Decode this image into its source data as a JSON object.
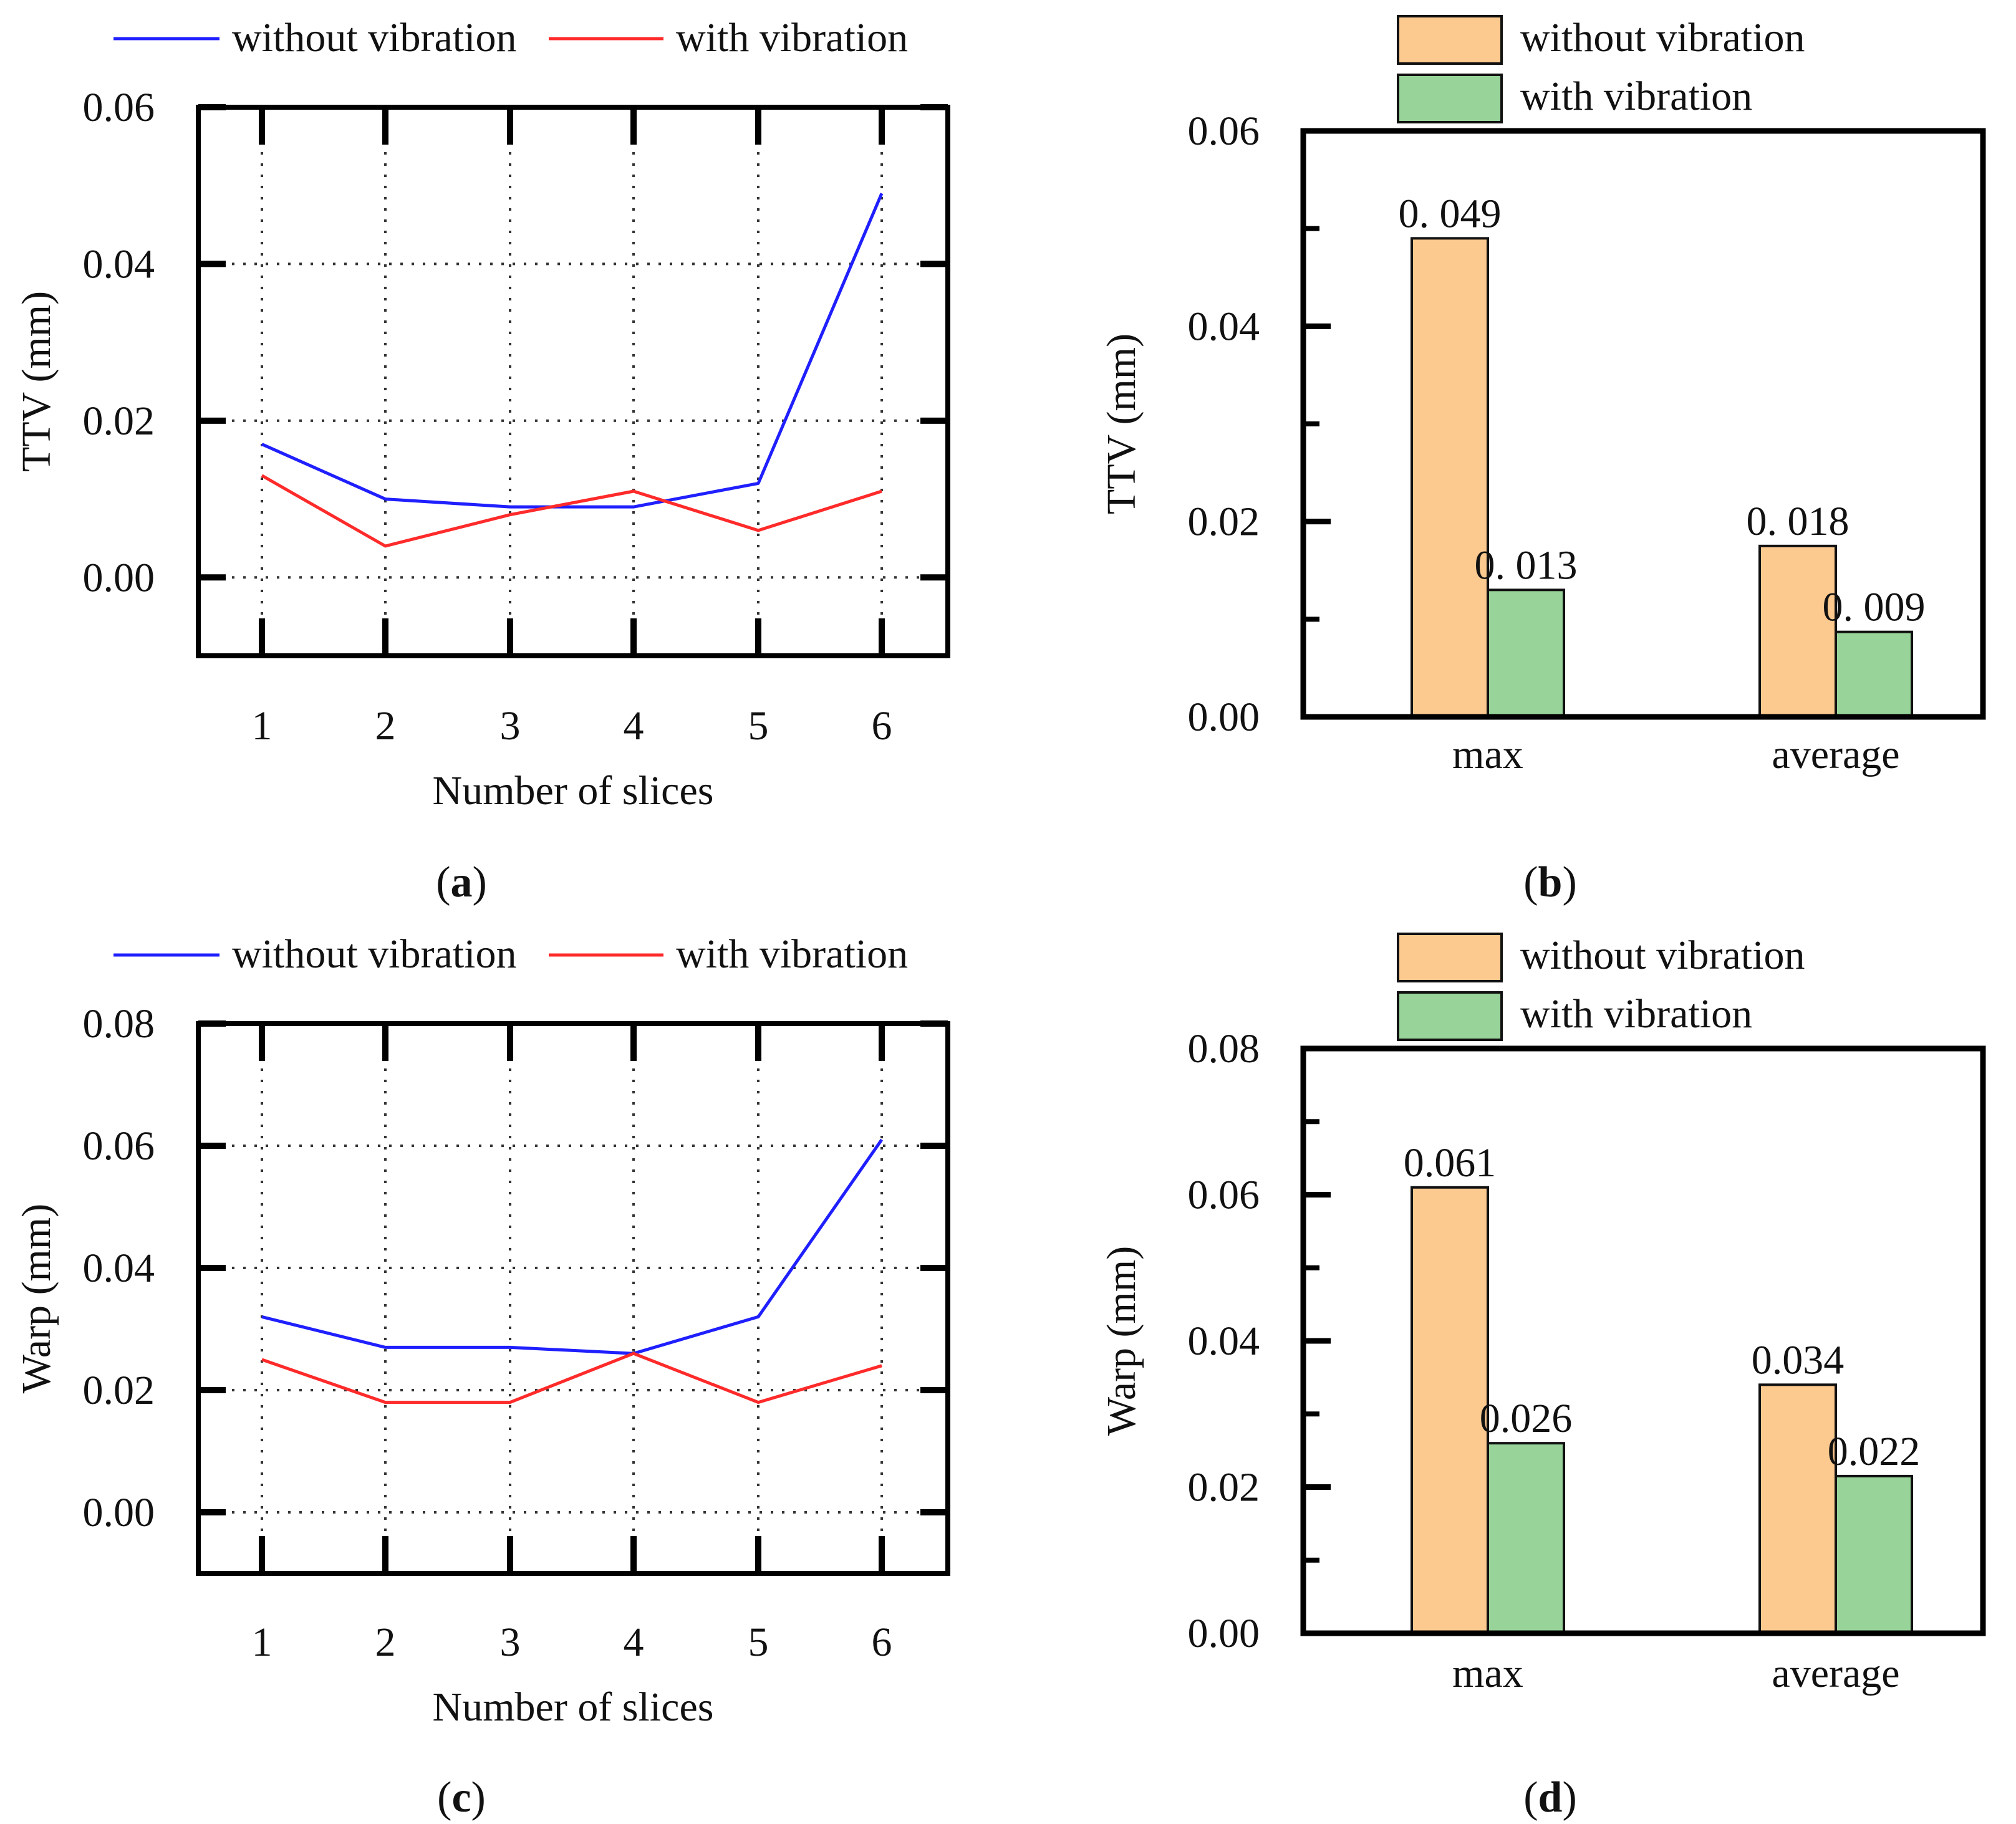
{
  "colors": {
    "blue_line": "#1f1fff",
    "red_line": "#ff2a2a",
    "orange_bar": "#fcc98f",
    "green_bar": "#98d49a",
    "axis": "#000000",
    "grid": "#333333"
  },
  "chart_data": [
    {
      "id": "a",
      "type": "line",
      "panel_label": "a",
      "title": "",
      "xlabel": "Number of slices",
      "ylabel": "TTV (mm)",
      "x": [
        1,
        2,
        3,
        4,
        5,
        6
      ],
      "xticks": [
        "1",
        "2",
        "3",
        "4",
        "5",
        "6"
      ],
      "ylim": [
        -0.01,
        0.06
      ],
      "yticks": [
        0.0,
        0.02,
        0.04,
        0.06
      ],
      "ytick_labels": [
        "0.00",
        "0.02",
        "0.04",
        "0.06"
      ],
      "grid": true,
      "legend": "top",
      "series": [
        {
          "name": "without vibration",
          "color_key": "blue_line",
          "values": [
            0.017,
            0.01,
            0.009,
            0.009,
            0.012,
            0.049
          ]
        },
        {
          "name": "with vibration",
          "color_key": "red_line",
          "values": [
            0.013,
            0.004,
            0.008,
            0.011,
            0.006,
            0.011
          ]
        }
      ]
    },
    {
      "id": "b",
      "type": "bar",
      "panel_label": "b",
      "title": "",
      "xlabel": "",
      "ylabel": "TTV (mm)",
      "categories": [
        "max",
        "average"
      ],
      "ylim": [
        0.0,
        0.06
      ],
      "yticks": [
        0.0,
        0.02,
        0.04,
        0.06
      ],
      "ytick_labels": [
        "0.00",
        "0.02",
        "0.04",
        "0.06"
      ],
      "grid": false,
      "legend": "top",
      "series": [
        {
          "name": "without vibration",
          "color_key": "orange_bar",
          "values": [
            0.049,
            0.0175
          ],
          "labels": [
            "0. 049",
            "0. 018"
          ]
        },
        {
          "name": "with vibration",
          "color_key": "green_bar",
          "values": [
            0.013,
            0.0087
          ],
          "labels": [
            "0. 013",
            "0. 009"
          ]
        }
      ]
    },
    {
      "id": "c",
      "type": "line",
      "panel_label": "c",
      "title": "",
      "xlabel": "Number of slices",
      "ylabel": "Warp (mm)",
      "x": [
        1,
        2,
        3,
        4,
        5,
        6
      ],
      "xticks": [
        "1",
        "2",
        "3",
        "4",
        "5",
        "6"
      ],
      "ylim": [
        -0.01,
        0.08
      ],
      "yticks": [
        0.0,
        0.02,
        0.04,
        0.06,
        0.08
      ],
      "ytick_labels": [
        "0.00",
        "0.02",
        "0.04",
        "0.06",
        "0.08"
      ],
      "grid": true,
      "legend": "top",
      "series": [
        {
          "name": "without vibration",
          "color_key": "blue_line",
          "values": [
            0.032,
            0.027,
            0.027,
            0.026,
            0.032,
            0.061
          ]
        },
        {
          "name": "with vibration",
          "color_key": "red_line",
          "values": [
            0.025,
            0.018,
            0.018,
            0.026,
            0.018,
            0.024
          ]
        }
      ]
    },
    {
      "id": "d",
      "type": "bar",
      "panel_label": "d",
      "title": "",
      "xlabel": "",
      "ylabel": "Warp (mm)",
      "categories": [
        "max",
        "average"
      ],
      "ylim": [
        0.0,
        0.08
      ],
      "yticks": [
        0.0,
        0.02,
        0.04,
        0.06,
        0.08
      ],
      "ytick_labels": [
        "0.00",
        "0.02",
        "0.04",
        "0.06",
        "0.08"
      ],
      "grid": false,
      "legend": "top",
      "series": [
        {
          "name": "without vibration",
          "color_key": "orange_bar",
          "values": [
            0.061,
            0.034
          ],
          "labels": [
            "0.061",
            "0.034"
          ]
        },
        {
          "name": "with vibration",
          "color_key": "green_bar",
          "values": [
            0.026,
            0.0215
          ],
          "labels": [
            "0.026",
            "0.022"
          ]
        }
      ]
    }
  ]
}
